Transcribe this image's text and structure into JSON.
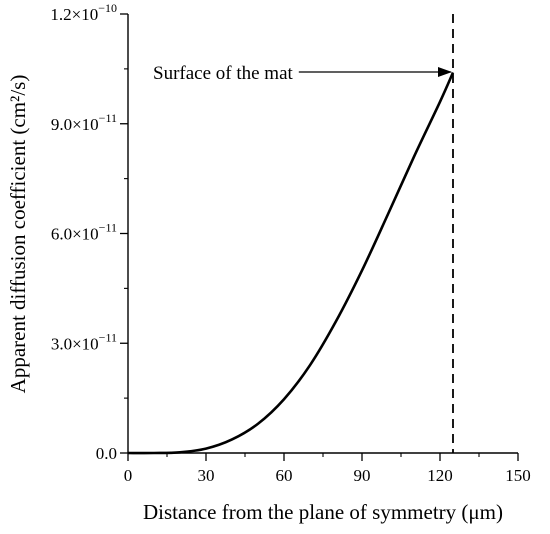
{
  "chart_data": {
    "type": "line",
    "title": "",
    "xlabel": "Distance from the plane of symmetry (μm)",
    "ylabel": "Apparent diffusion coefficient (cm²/s)",
    "xlim": [
      0,
      150
    ],
    "ylim": [
      0,
      1.2e-10
    ],
    "xticks": [
      {
        "value": 0,
        "label": "0"
      },
      {
        "value": 30,
        "label": "30"
      },
      {
        "value": 60,
        "label": "60"
      },
      {
        "value": 90,
        "label": "90"
      },
      {
        "value": 120,
        "label": "120"
      },
      {
        "value": 150,
        "label": "150"
      }
    ],
    "yticks": [
      {
        "value": 0,
        "mant": "0.0",
        "exp": ""
      },
      {
        "value": 3e-11,
        "mant": "3.0×10",
        "exp": "−11"
      },
      {
        "value": 6e-11,
        "mant": "6.0×10",
        "exp": "−11"
      },
      {
        "value": 9e-11,
        "mant": "9.0×10",
        "exp": "−11"
      },
      {
        "value": 1.2e-10,
        "mant": "1.2×10",
        "exp": "−10"
      }
    ],
    "grid": false,
    "series": [
      {
        "x": [
          0,
          10,
          20,
          30,
          40,
          50,
          60,
          70,
          80,
          90,
          100,
          110,
          120,
          125
        ],
        "y": [
          0,
          0,
          2e-13,
          1.2e-12,
          3.7e-12,
          8e-12,
          1.47e-11,
          2.4e-11,
          3.6e-11,
          4.99e-11,
          6.53e-11,
          8.1e-11,
          9.6e-11,
          1.04e-10
        ],
        "color": "#000000"
      }
    ],
    "vline": {
      "x": 125,
      "style": "dashed"
    },
    "annotation": {
      "text": "Surface of the mat",
      "x": 125,
      "y": 1.04e-10
    }
  }
}
